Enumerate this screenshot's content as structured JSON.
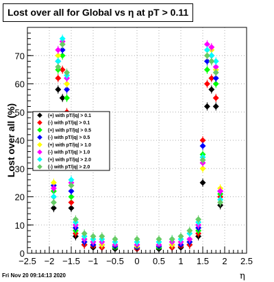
{
  "chart_data": {
    "type": "scatter",
    "title": "Lost over all for Global vs   η at pT > 0.11",
    "xlabel": "η",
    "ylabel": "Lost over all (%)",
    "xlim": [
      -2.5,
      2.5
    ],
    "ylim": [
      0,
      80
    ],
    "x_ticks": [
      "−2.5",
      "−2",
      "−1.5",
      "−1",
      "−0.5",
      "0",
      "0.5",
      "1",
      "1.5",
      "2",
      "2.5"
    ],
    "y_ticks": [
      "0",
      "10",
      "20",
      "30",
      "40",
      "50",
      "60",
      "70"
    ],
    "grid": true,
    "legend_position": "left-middle",
    "footer": "Fri Nov 20 09:14:13 2020",
    "series": [
      {
        "name": "(+) with pT/|q| > 0.1",
        "color": "#000000",
        "points": [
          [
            -1.9,
            16
          ],
          [
            -1.8,
            58
          ],
          [
            -1.7,
            55
          ],
          [
            -1.6,
            48
          ],
          [
            -1.5,
            16
          ],
          [
            -1.4,
            6
          ],
          [
            -1.2,
            3
          ],
          [
            -1.0,
            2
          ],
          [
            -0.8,
            2
          ],
          [
            -0.5,
            1.5
          ],
          [
            0,
            1.5
          ],
          [
            0.5,
            1.5
          ],
          [
            0.8,
            2
          ],
          [
            1.0,
            2
          ],
          [
            1.2,
            3
          ],
          [
            1.4,
            6
          ],
          [
            1.5,
            25
          ],
          [
            1.6,
            52
          ],
          [
            1.7,
            58
          ],
          [
            1.8,
            52
          ],
          [
            1.9,
            17
          ]
        ]
      },
      {
        "name": "(-) with pT/|q| > 0.1",
        "color": "#ff0000",
        "points": [
          [
            -1.9,
            20
          ],
          [
            -1.8,
            62
          ],
          [
            -1.7,
            65
          ],
          [
            -1.6,
            50
          ],
          [
            -1.5,
            18
          ],
          [
            -1.4,
            7
          ],
          [
            -1.2,
            3
          ],
          [
            -1.0,
            2.5
          ],
          [
            -0.8,
            2
          ],
          [
            -0.5,
            2
          ],
          [
            0,
            1.5
          ],
          [
            0.5,
            2
          ],
          [
            0.8,
            2
          ],
          [
            1.0,
            2.5
          ],
          [
            1.2,
            3
          ],
          [
            1.4,
            7
          ],
          [
            1.5,
            40
          ],
          [
            1.6,
            60
          ],
          [
            1.7,
            62
          ],
          [
            1.8,
            55
          ],
          [
            1.9,
            20
          ]
        ]
      },
      {
        "name": "(+) with pT/|q| > 0.5",
        "color": "#00ff00",
        "points": [
          [
            -1.9,
            22
          ],
          [
            -1.8,
            65
          ],
          [
            -1.7,
            70
          ],
          [
            -1.6,
            55
          ],
          [
            -1.5,
            20
          ],
          [
            -1.4,
            8
          ],
          [
            -1.2,
            4
          ],
          [
            -1.0,
            3
          ],
          [
            -0.8,
            3
          ],
          [
            -0.5,
            2
          ],
          [
            0,
            2
          ],
          [
            0.5,
            2
          ],
          [
            0.8,
            3
          ],
          [
            1.0,
            3
          ],
          [
            1.2,
            4
          ],
          [
            1.4,
            8
          ],
          [
            1.5,
            35
          ],
          [
            1.6,
            65
          ],
          [
            1.7,
            68
          ],
          [
            1.8,
            60
          ],
          [
            1.9,
            21
          ]
        ]
      },
      {
        "name": "(-) with pT/|q| > 0.5",
        "color": "#0000ff",
        "points": [
          [
            -1.9,
            24
          ],
          [
            -1.8,
            68
          ],
          [
            -1.7,
            72
          ],
          [
            -1.6,
            58
          ],
          [
            -1.5,
            22
          ],
          [
            -1.4,
            9
          ],
          [
            -1.2,
            4
          ],
          [
            -1.0,
            3
          ],
          [
            -0.8,
            3
          ],
          [
            -0.5,
            2.5
          ],
          [
            0,
            2
          ],
          [
            0.5,
            2.5
          ],
          [
            0.8,
            3
          ],
          [
            1.0,
            3
          ],
          [
            1.2,
            4
          ],
          [
            1.4,
            9
          ],
          [
            1.5,
            38
          ],
          [
            1.6,
            68
          ],
          [
            1.7,
            70
          ],
          [
            1.8,
            62
          ],
          [
            1.9,
            22
          ]
        ]
      },
      {
        "name": "(+) with pT/|q| > 1.0",
        "color": "#ffff00",
        "points": [
          [
            -1.9,
            25
          ],
          [
            -1.8,
            70
          ],
          [
            -1.7,
            74
          ],
          [
            -1.6,
            60
          ],
          [
            -1.5,
            24
          ],
          [
            -1.4,
            10
          ],
          [
            -1.2,
            5
          ],
          [
            -1.0,
            4
          ],
          [
            -0.8,
            3
          ],
          [
            -0.5,
            3
          ],
          [
            0,
            2.5
          ],
          [
            0.5,
            3
          ],
          [
            0.8,
            3
          ],
          [
            1.0,
            4
          ],
          [
            1.2,
            5
          ],
          [
            1.4,
            10
          ],
          [
            1.5,
            30
          ],
          [
            1.6,
            70
          ],
          [
            1.7,
            72
          ],
          [
            1.8,
            65
          ],
          [
            1.9,
            23
          ]
        ]
      },
      {
        "name": "(-) with pT/|q| > 1.0",
        "color": "#ff00ff",
        "points": [
          [
            -1.9,
            23
          ],
          [
            -1.8,
            72
          ],
          [
            -1.7,
            75
          ],
          [
            -1.6,
            62
          ],
          [
            -1.5,
            25
          ],
          [
            -1.4,
            10
          ],
          [
            -1.2,
            5
          ],
          [
            -1.0,
            4
          ],
          [
            -0.8,
            4
          ],
          [
            -0.5,
            3
          ],
          [
            0,
            3
          ],
          [
            0.5,
            3
          ],
          [
            0.8,
            4
          ],
          [
            1.0,
            4
          ],
          [
            1.2,
            5
          ],
          [
            1.4,
            10
          ],
          [
            1.5,
            32
          ],
          [
            1.6,
            74
          ],
          [
            1.7,
            73
          ],
          [
            1.8,
            66
          ],
          [
            1.9,
            22
          ]
        ]
      },
      {
        "name": "(+) with pT/|q| > 2.0",
        "color": "#00ffff",
        "points": [
          [
            -1.9,
            20
          ],
          [
            -1.8,
            68
          ],
          [
            -1.7,
            76
          ],
          [
            -1.6,
            63
          ],
          [
            -1.5,
            26
          ],
          [
            -1.4,
            11
          ],
          [
            -1.2,
            6
          ],
          [
            -1.0,
            5
          ],
          [
            -0.8,
            5
          ],
          [
            -0.5,
            4
          ],
          [
            0,
            4
          ],
          [
            0.5,
            4
          ],
          [
            0.8,
            5
          ],
          [
            1.0,
            5
          ],
          [
            1.2,
            7
          ],
          [
            1.4,
            11
          ],
          [
            1.5,
            34
          ],
          [
            1.6,
            72
          ],
          [
            1.7,
            70
          ],
          [
            1.8,
            68
          ],
          [
            1.9,
            19
          ]
        ]
      },
      {
        "name": "(-) with pT/|q| > 2.0",
        "color": "#66cc66",
        "points": [
          [
            -1.9,
            18
          ],
          [
            -1.8,
            66
          ],
          [
            -1.7,
            74
          ],
          [
            -1.6,
            64
          ],
          [
            -1.5,
            24
          ],
          [
            -1.4,
            12
          ],
          [
            -1.2,
            7
          ],
          [
            -1.0,
            6
          ],
          [
            -0.8,
            6
          ],
          [
            -0.5,
            5
          ],
          [
            0,
            5
          ],
          [
            0.5,
            5
          ],
          [
            0.8,
            5
          ],
          [
            1.0,
            6
          ],
          [
            1.2,
            8
          ],
          [
            1.4,
            12
          ],
          [
            1.5,
            33
          ],
          [
            1.6,
            70
          ],
          [
            1.7,
            68
          ],
          [
            1.8,
            64
          ],
          [
            1.9,
            18
          ]
        ]
      }
    ]
  }
}
